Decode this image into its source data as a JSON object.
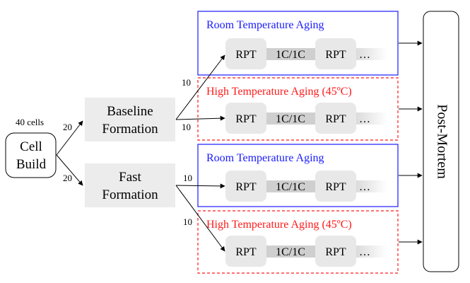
{
  "start": {
    "count_label": "40 cells",
    "line1": "Cell",
    "line2": "Build"
  },
  "formations": [
    {
      "line1": "Baseline",
      "line2": "Formation",
      "branch_count": "20"
    },
    {
      "line1": "Fast",
      "line2": "Formation",
      "branch_count": "20"
    }
  ],
  "aging_groups": [
    {
      "title": "Room Temperature Aging",
      "kind": "room",
      "branch_count": "10"
    },
    {
      "title": "High Temperature Aging (45ºC)",
      "kind": "high",
      "branch_count": "10"
    },
    {
      "title": "Room Temperature Aging",
      "kind": "room",
      "branch_count": "10"
    },
    {
      "title": "High Temperature Aging (45ºC)",
      "kind": "high",
      "branch_count": "10"
    }
  ],
  "cycle": {
    "rpt": "RPT",
    "cycling": "1C/1C",
    "ellipsis": "…"
  },
  "end": {
    "label": "Post-Mortem"
  },
  "colors": {
    "room": "#1a1aff",
    "high": "#ff1a1a",
    "box_fill": "#ececec",
    "rpt_fill": "#e8e8e8",
    "stroke": "#000000"
  }
}
